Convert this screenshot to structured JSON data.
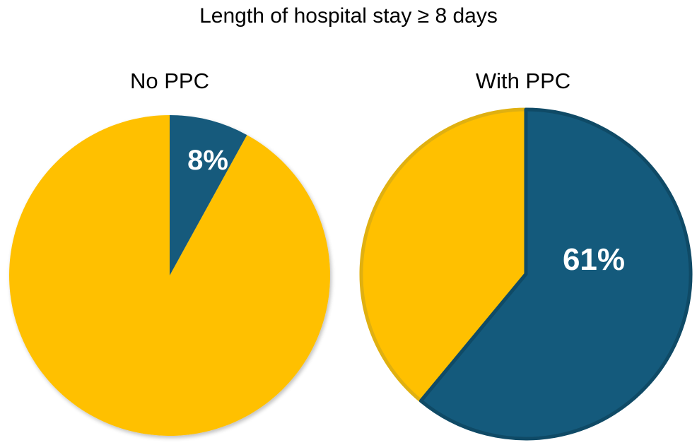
{
  "title": "Length of hospital stay ≥ 8 days",
  "colors": {
    "highlight": "#145A7C",
    "rest": "#FFC000",
    "rest_border": "#E0B010"
  },
  "chart_data": [
    {
      "type": "pie",
      "title": "No PPC",
      "values": [
        8,
        92
      ],
      "data_labels": [
        "8%",
        ""
      ],
      "start_angle": 0,
      "direction": "clockwise"
    },
    {
      "type": "pie",
      "title": "With PPC",
      "values": [
        61,
        39
      ],
      "data_labels": [
        "61%",
        ""
      ],
      "start_angle": 0,
      "direction": "clockwise"
    }
  ]
}
